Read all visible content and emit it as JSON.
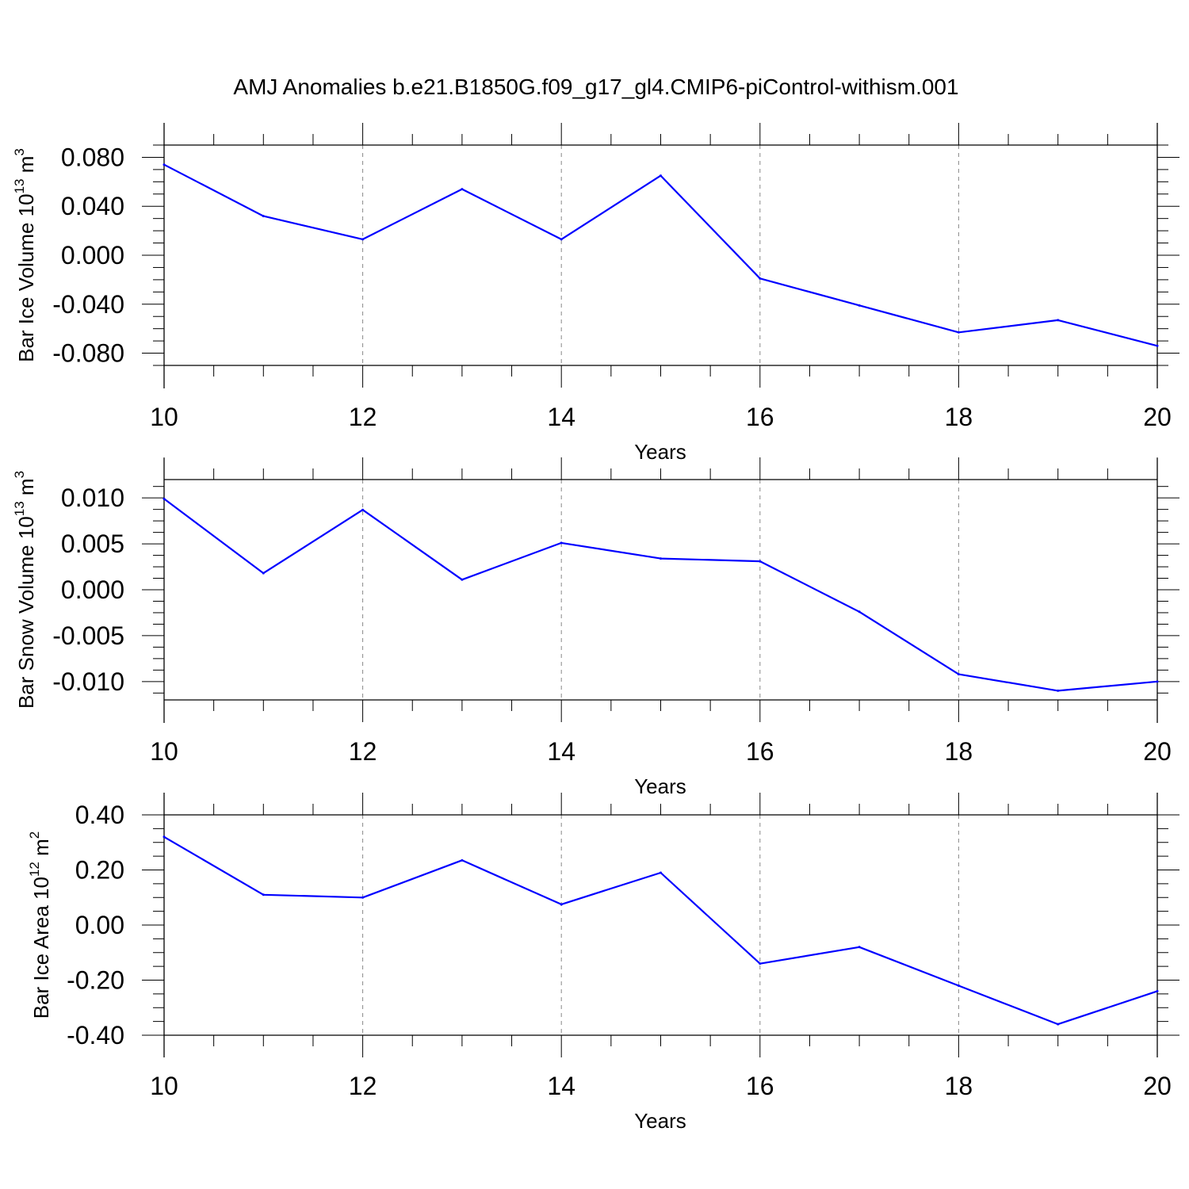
{
  "title": "AMJ Anomalies b.e21.B1850G.f09_g17_gl4.CMIP6-piControl-withism.001",
  "chart_data": [
    {
      "type": "line",
      "ylabel": {
        "main": "Bar Ice Volume 10",
        "exp": "13",
        "unit": " m",
        "unit_exp": "3"
      },
      "xlabel": "Years",
      "xlim": [
        10,
        20
      ],
      "ylim": [
        -0.09,
        0.09
      ],
      "x_ticks": [
        "10",
        "12",
        "14",
        "16",
        "18",
        "20"
      ],
      "y_ticks": [
        {
          "v": 0.08,
          "label": "0.080"
        },
        {
          "v": 0.04,
          "label": "0.040"
        },
        {
          "v": 0.0,
          "label": "0.000"
        },
        {
          "v": -0.04,
          "label": "-0.040"
        },
        {
          "v": -0.08,
          "label": "-0.080"
        }
      ],
      "grid": "vertical dashed at labeled x ticks",
      "line_color": "#0000ff",
      "x": [
        10,
        11,
        12,
        13,
        14,
        15,
        16,
        17,
        18,
        19,
        20
      ],
      "y": [
        0.074,
        0.032,
        0.013,
        0.054,
        0.013,
        0.065,
        -0.019,
        -0.041,
        -0.063,
        -0.053,
        -0.074
      ]
    },
    {
      "type": "line",
      "ylabel": {
        "main": "Bar Snow Volume 10",
        "exp": "13",
        "unit": " m",
        "unit_exp": "3"
      },
      "xlabel": "Years",
      "xlim": [
        10,
        20
      ],
      "ylim": [
        -0.012,
        0.012
      ],
      "x_ticks": [
        "10",
        "12",
        "14",
        "16",
        "18",
        "20"
      ],
      "y_ticks": [
        {
          "v": 0.01,
          "label": "0.010"
        },
        {
          "v": 0.005,
          "label": "0.005"
        },
        {
          "v": 0.0,
          "label": "0.000"
        },
        {
          "v": -0.005,
          "label": "-0.005"
        },
        {
          "v": -0.01,
          "label": "-0.010"
        }
      ],
      "grid": "vertical dashed at labeled x ticks",
      "line_color": "#0000ff",
      "x": [
        10,
        11,
        12,
        13,
        14,
        15,
        16,
        17,
        18,
        19,
        20
      ],
      "y": [
        0.0099,
        0.0018,
        0.0087,
        0.0011,
        0.0051,
        0.0034,
        0.0031,
        -0.0024,
        -0.0092,
        -0.011,
        -0.01
      ]
    },
    {
      "type": "line",
      "ylabel": {
        "main": "Bar Ice Area 10",
        "exp": "12",
        "unit": " m",
        "unit_exp": "2"
      },
      "xlabel": "Years",
      "xlim": [
        10,
        20
      ],
      "ylim": [
        -0.4,
        0.4
      ],
      "x_ticks": [
        "10",
        "12",
        "14",
        "16",
        "18",
        "20"
      ],
      "y_ticks": [
        {
          "v": 0.4,
          "label": "0.40"
        },
        {
          "v": 0.2,
          "label": "0.20"
        },
        {
          "v": 0.0,
          "label": "0.00"
        },
        {
          "v": -0.2,
          "label": "-0.20"
        },
        {
          "v": -0.4,
          "label": "-0.40"
        }
      ],
      "grid": "vertical dashed at labeled x ticks",
      "line_color": "#0000ff",
      "x": [
        10,
        11,
        12,
        13,
        14,
        15,
        16,
        17,
        18,
        19,
        20
      ],
      "y": [
        0.32,
        0.11,
        0.1,
        0.235,
        0.075,
        0.19,
        -0.14,
        -0.08,
        -0.22,
        -0.36,
        -0.24
      ]
    }
  ]
}
